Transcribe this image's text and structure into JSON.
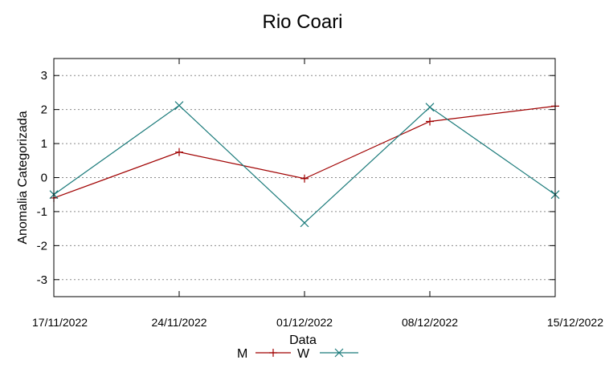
{
  "chart_data": {
    "type": "line",
    "title": "Rio Coari",
    "xlabel": "Data",
    "ylabel": "Anomalia Categorizada",
    "categories": [
      "17/11/2022",
      "24/11/2022",
      "01/12/2022",
      "08/12/2022",
      "15/12/2022"
    ],
    "ylim": [
      -3.5,
      3.5
    ],
    "yticks": [
      -3,
      -2,
      -1,
      0,
      1,
      2,
      3
    ],
    "grid": "horizontal dotted",
    "legend_position": "bottom",
    "series": [
      {
        "name": "M",
        "marker": "plus",
        "color": "#a00000",
        "values": [
          -0.6,
          0.75,
          -0.03,
          1.65,
          2.1
        ]
      },
      {
        "name": "W",
        "marker": "x",
        "color": "#1a7a7a",
        "values": [
          -0.5,
          2.12,
          -1.33,
          2.07,
          -0.5
        ]
      }
    ]
  }
}
